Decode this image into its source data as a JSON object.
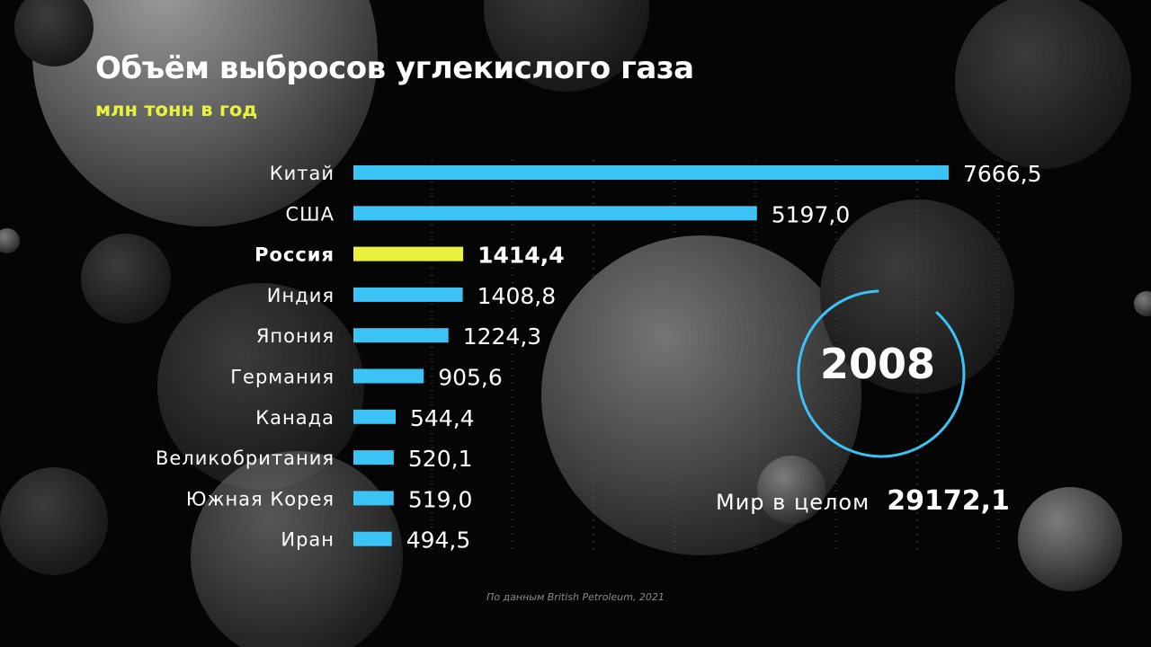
{
  "title": "Объём выбросов углекислого газа",
  "subtitle": "млн тонн в год",
  "year": "2008",
  "world": {
    "label": "Мир в целом",
    "value": "29172,1"
  },
  "source": "По данным British Petroleum, 2021",
  "colors": {
    "bar": "#3cc3f5",
    "highlight": "#e9f23f",
    "ring": "#3cc3f5",
    "background": "#050505"
  },
  "chart_data": {
    "type": "bar",
    "orientation": "horizontal",
    "categories": [
      "Китай",
      "США",
      "Россия",
      "Индия",
      "Япония",
      "Германия",
      "Канада",
      "Великобритания",
      "Южная Корея",
      "Иран"
    ],
    "values": [
      7666.5,
      5197.0,
      1414.4,
      1408.8,
      1224.3,
      905.6,
      544.4,
      520.1,
      519.0,
      494.5
    ],
    "value_labels": [
      "7666,5",
      "5197,0",
      "1414,4",
      "1408,8",
      "1224,3",
      "905,6",
      "544,4",
      "520,1",
      "519,0",
      "494,5"
    ],
    "highlight": "Россия",
    "title": "Объём выбросов углекислого газа",
    "subtitle": "млн тонн в год",
    "xlabel": "",
    "ylabel": "",
    "xlim": [
      0,
      7666.5
    ],
    "grid": "vertical dotted"
  }
}
